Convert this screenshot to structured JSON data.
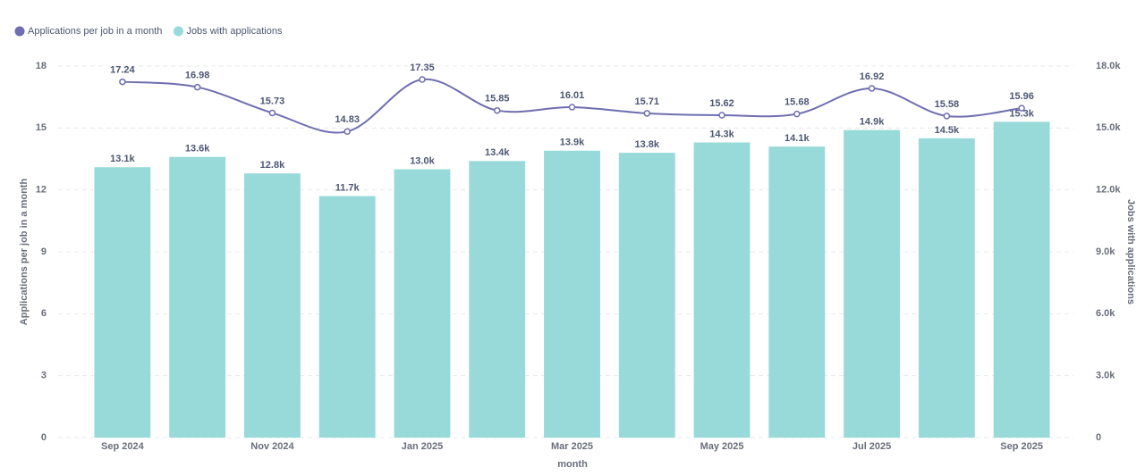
{
  "chart_data": {
    "type": "combo",
    "categories": [
      "Sep 2024",
      null,
      "Nov 2024",
      null,
      "Jan 2025",
      null,
      "Mar 2025",
      null,
      "May 2025",
      null,
      "Jul 2025",
      null,
      "Sep 2025"
    ],
    "xlabel": "month",
    "ylabel": "Applications per job in a month",
    "y2label": "Jobs with applications",
    "series": [
      {
        "name": "Applications per job in a month",
        "type": "line",
        "color": "#6f6eb0",
        "values": [
          17.24,
          16.98,
          15.73,
          14.83,
          17.35,
          15.85,
          16.01,
          15.71,
          15.62,
          15.68,
          16.92,
          15.58,
          15.96
        ]
      },
      {
        "name": "Jobs with applications",
        "type": "bar",
        "axis": "y2",
        "color": "#98d9d9",
        "values": [
          13100,
          13600,
          12800,
          11700,
          13000,
          13400,
          13900,
          13800,
          14300,
          14100,
          14900,
          14500,
          15300
        ],
        "value_labels": [
          "13.1k",
          "13.6k",
          "12.8k",
          "11.7k",
          "13.0k",
          "13.4k",
          "13.9k",
          "13.8k",
          "14.3k",
          "14.1k",
          "14.9k",
          "14.5k",
          "15.3k"
        ]
      }
    ],
    "ylim": [
      0,
      18
    ],
    "yticks": [
      0,
      3,
      6,
      9,
      12,
      15,
      18
    ],
    "y2lim": [
      0,
      18000
    ],
    "y2ticks": [
      0,
      {
        "value": 3000,
        "label": "3.0k"
      },
      {
        "value": 6000,
        "label": "6.0k"
      },
      {
        "value": 9000,
        "label": "9.0k"
      },
      {
        "value": 12000,
        "label": "12.0k"
      },
      {
        "value": 15000,
        "label": "15.0k"
      },
      {
        "value": 18000,
        "label": "18.0k"
      }
    ],
    "grid": true
  }
}
